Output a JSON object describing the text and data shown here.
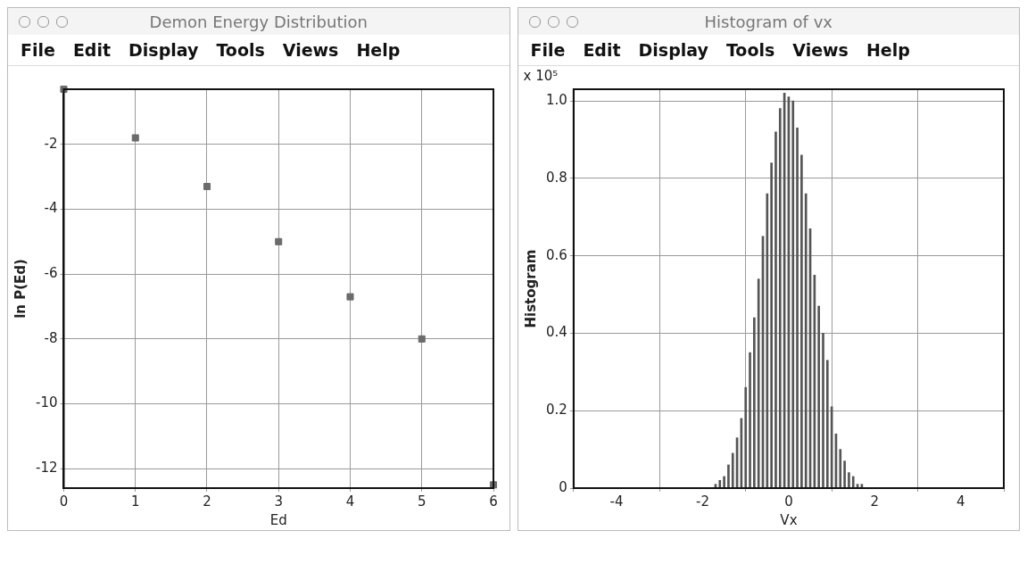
{
  "chart_data": [
    {
      "type": "scatter",
      "title": "Demon Energy Distribution",
      "xlabel": "Ed",
      "ylabel": "ln P(Ed)",
      "x": [
        0,
        1,
        2,
        3,
        4,
        5,
        6
      ],
      "values": [
        -0.3,
        -1.8,
        -3.3,
        -5.0,
        -6.7,
        -8.0,
        -12.5
      ],
      "color": "#6b6b6b",
      "marker": "square",
      "xlim": [
        0,
        6
      ],
      "ylim": [
        -12.6,
        -0.3
      ],
      "xticks": [
        0,
        1,
        2,
        3,
        4,
        5,
        6
      ],
      "yticks": [
        -12,
        -10,
        -8,
        -6,
        -4,
        -2
      ],
      "grid": true,
      "annotations": [
        "File",
        "Edit",
        "Display",
        "Tools",
        "Views",
        "Help"
      ]
    },
    {
      "type": "histogram",
      "title": "Histogram of vx",
      "xlabel": "Vx",
      "ylabel": "Histogram",
      "bins": [
        -1.75,
        -1.65,
        -1.55,
        -1.45,
        -1.35,
        -1.25,
        -1.15,
        -1.05,
        -0.95,
        -0.85,
        -0.75,
        -0.65,
        -0.55,
        -0.45,
        -0.35,
        -0.25,
        -0.15,
        -0.05,
        0.05,
        0.15,
        0.25,
        0.35,
        0.45,
        0.55,
        0.65,
        0.75,
        0.85,
        0.95,
        1.05,
        1.15,
        1.25,
        1.35,
        1.45,
        1.55,
        1.65,
        1.75
      ],
      "values": [
        0.01,
        0.02,
        0.03,
        0.06,
        0.09,
        0.13,
        0.18,
        0.26,
        0.35,
        0.44,
        0.54,
        0.65,
        0.76,
        0.84,
        0.92,
        0.98,
        1.02,
        1.01,
        1.0,
        0.93,
        0.86,
        0.76,
        0.67,
        0.55,
        0.47,
        0.4,
        0.33,
        0.21,
        0.14,
        0.1,
        0.07,
        0.04,
        0.03,
        0.01,
        0.01
      ],
      "color": "#555555",
      "xlim": [
        -5,
        5
      ],
      "ylim": [
        0,
        1.03
      ],
      "xticks": [
        -4,
        -2,
        0,
        2,
        4
      ],
      "yticks": [
        0,
        0.2,
        0.4,
        0.6,
        0.8,
        {
          "value": 1,
          "label": "1.0"
        }
      ],
      "grid": true,
      "annotations": [
        "File",
        "Edit",
        "Display",
        "Tools",
        "Views",
        "Help",
        "x 10⁵"
      ]
    }
  ]
}
